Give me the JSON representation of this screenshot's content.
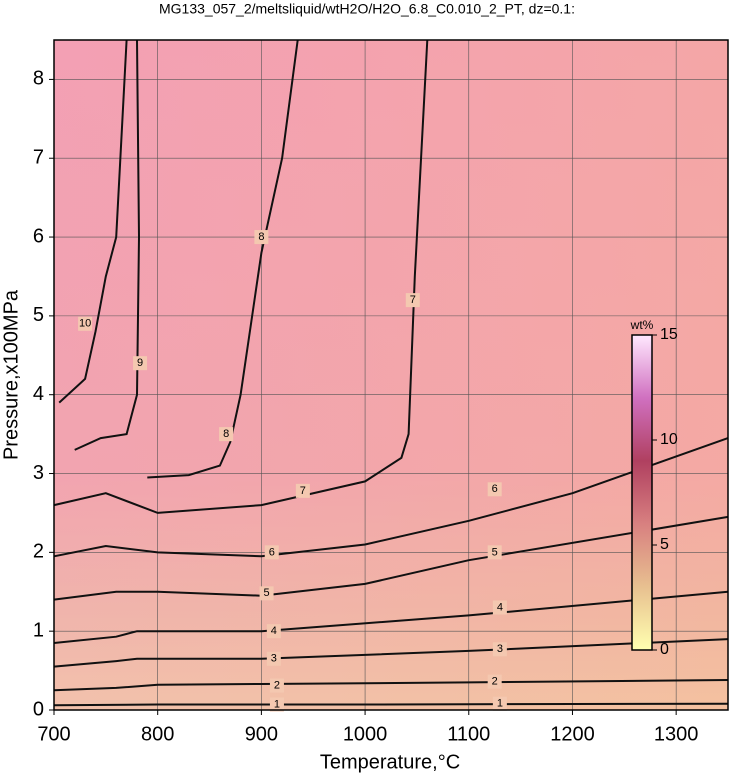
{
  "chart_data": {
    "type": "contour",
    "title": "MG133_057_2/meltsliquid/wtH2O/H2O_6.8_C0.010_2_PT, dz=0.1:",
    "x_label": "Temperature,°C",
    "y_label": "Pressure,x100MPa",
    "xlim": [
      700,
      1350
    ],
    "ylim": [
      0,
      8.5
    ],
    "xticks": [
      700,
      800,
      900,
      1000,
      1100,
      1200,
      1300
    ],
    "yticks": [
      0,
      1,
      2,
      3,
      4,
      5,
      6,
      7,
      8
    ],
    "grid": true,
    "contours": [
      {
        "name": "1",
        "x": [
          700,
          800,
          1000,
          1350
        ],
        "y": [
          0.06,
          0.07,
          0.07,
          0.08
        ],
        "label_at": [
          [
            915,
            0.07
          ],
          [
            1130,
            0.08
          ]
        ]
      },
      {
        "name": "2",
        "x": [
          700,
          760,
          800,
          900,
          1100,
          1350
        ],
        "y": [
          0.25,
          0.28,
          0.32,
          0.33,
          0.35,
          0.38
        ],
        "label_at": [
          [
            915,
            0.31
          ],
          [
            1125,
            0.36
          ]
        ]
      },
      {
        "name": "3",
        "x": [
          700,
          760,
          780,
          900,
          1100,
          1350
        ],
        "y": [
          0.55,
          0.62,
          0.65,
          0.65,
          0.75,
          0.9
        ],
        "label_at": [
          [
            912,
            0.65
          ],
          [
            1130,
            0.77
          ]
        ]
      },
      {
        "name": "4",
        "x": [
          700,
          760,
          780,
          900,
          1100,
          1350
        ],
        "y": [
          0.85,
          0.93,
          1.0,
          1.0,
          1.2,
          1.5
        ],
        "label_at": [
          [
            912,
            1.0
          ],
          [
            1130,
            1.3
          ]
        ]
      },
      {
        "name": "5",
        "x": [
          700,
          760,
          800,
          900,
          1000,
          1100,
          1350
        ],
        "y": [
          1.4,
          1.5,
          1.5,
          1.45,
          1.6,
          1.9,
          2.45
        ],
        "label_at": [
          [
            905,
            1.48
          ],
          [
            1125,
            2.0
          ]
        ]
      },
      {
        "name": "6",
        "x": [
          700,
          750,
          800,
          900,
          1000,
          1100,
          1200,
          1350
        ],
        "y": [
          1.95,
          2.08,
          2.0,
          1.95,
          2.1,
          2.4,
          2.75,
          3.45
        ],
        "label_at": [
          [
            910,
            2.0
          ],
          [
            1125,
            2.8
          ]
        ]
      },
      {
        "name": "7",
        "x": [
          700,
          750,
          800,
          900,
          1000,
          1035,
          1042,
          1048,
          1060
        ],
        "y": [
          2.6,
          2.75,
          2.5,
          2.6,
          2.9,
          3.2,
          3.5,
          5.5,
          8.5
        ],
        "label_at": [
          [
            940,
            2.78
          ],
          [
            1046,
            5.2
          ]
        ]
      },
      {
        "name": "8",
        "x": [
          790,
          830,
          860,
          870,
          880,
          900,
          920,
          935
        ],
        "y": [
          2.95,
          2.98,
          3.1,
          3.4,
          4.0,
          5.8,
          7.0,
          8.5
        ],
        "label_at": [
          [
            866,
            3.5
          ],
          [
            900,
            6.0
          ]
        ]
      },
      {
        "name": "9",
        "x": [
          720,
          745,
          770,
          780,
          782,
          780
        ],
        "y": [
          3.3,
          3.45,
          3.5,
          4.0,
          6.0,
          8.5
        ],
        "label_at": [
          [
            783,
            4.4
          ]
        ]
      },
      {
        "name": "10",
        "x": [
          705,
          730,
          740,
          750,
          760,
          770
        ],
        "y": [
          3.9,
          4.2,
          4.8,
          5.5,
          6.0,
          8.5
        ],
        "label_at": [
          [
            730,
            4.9
          ]
        ]
      }
    ],
    "colorbar": {
      "label": "wt%",
      "lim": [
        0,
        15
      ],
      "ticks": [
        0,
        5,
        10,
        15
      ],
      "colors": [
        "#ffffb0",
        "#e8c090",
        "#d88080",
        "#b04060",
        "#d070c0",
        "#ffe8ff"
      ]
    }
  }
}
